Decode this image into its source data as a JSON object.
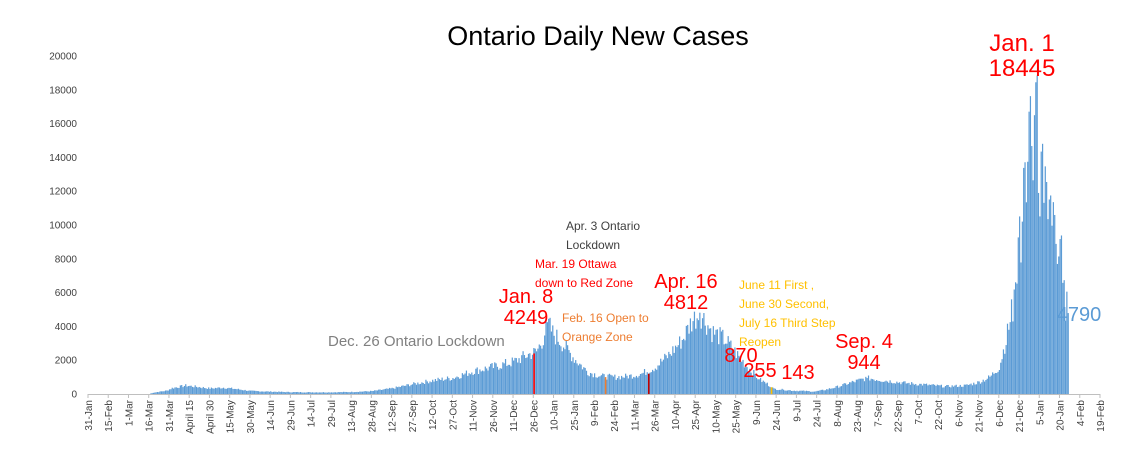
{
  "chart_data": {
    "type": "bar",
    "title": "Ontario Daily New Cases",
    "xlabel": "",
    "ylabel": "",
    "ylim": [
      0,
      20000
    ],
    "y_ticks": [
      "0",
      "2000",
      "4000",
      "6000",
      "8000",
      "10000",
      "12000",
      "14000",
      "16000",
      "18000",
      "20000"
    ],
    "x_tick_labels": [
      "31-Jan",
      "15-Feb",
      "1-Mar",
      "16-Mar",
      "31-Mar",
      "April 15",
      "April 30",
      "15-May",
      "30-May",
      "14-Jun",
      "29-Jun",
      "14-Jul",
      "29-Jul",
      "13-Aug",
      "28-Aug",
      "12-Sep",
      "27-Sep",
      "12-Oct",
      "27-Oct",
      "11-Nov",
      "26-Nov",
      "11-Dec",
      "26-Dec",
      "10-Jan",
      "25-Jan",
      "9-Feb",
      "24-Feb",
      "11-Mar",
      "26-Mar",
      "10-Apr",
      "25-Apr",
      "10-May",
      "25-May",
      "9-Jun",
      "24-Jun",
      "9-Jul",
      "24-Jul",
      "8-Aug",
      "23-Aug",
      "7-Sep",
      "22-Sep",
      "7-Oct",
      "22-Oct",
      "6-Nov",
      "21-Nov",
      "6-Dec",
      "21-Dec",
      "5-Jan",
      "20-Jan",
      "4-Feb",
      "19-Feb"
    ],
    "bar_color": "#5b9bd5",
    "grid": false,
    "legend": "none",
    "series_profile": [
      [
        0,
        0
      ],
      [
        45,
        0
      ],
      [
        48,
        80
      ],
      [
        58,
        200
      ],
      [
        62,
        350
      ],
      [
        72,
        500
      ],
      [
        80,
        430
      ],
      [
        90,
        330
      ],
      [
        100,
        380
      ],
      [
        110,
        290
      ],
      [
        120,
        180
      ],
      [
        135,
        140
      ],
      [
        150,
        110
      ],
      [
        165,
        100
      ],
      [
        180,
        100
      ],
      [
        195,
        120
      ],
      [
        210,
        170
      ],
      [
        225,
        330
      ],
      [
        240,
        580
      ],
      [
        255,
        800
      ],
      [
        270,
        950
      ],
      [
        285,
        1350
      ],
      [
        300,
        1600
      ],
      [
        315,
        1900
      ],
      [
        325,
        2300
      ],
      [
        332,
        2500
      ],
      [
        337,
        3300
      ],
      [
        340,
        4249
      ],
      [
        344,
        3600
      ],
      [
        350,
        3100
      ],
      [
        360,
        2100
      ],
      [
        370,
        1300
      ],
      [
        380,
        1050
      ],
      [
        390,
        1000
      ],
      [
        400,
        1050
      ],
      [
        410,
        1200
      ],
      [
        420,
        1600
      ],
      [
        430,
        2300
      ],
      [
        440,
        3200
      ],
      [
        447,
        4300
      ],
      [
        453,
        4812
      ],
      [
        462,
        3700
      ],
      [
        472,
        3200
      ],
      [
        482,
        2200
      ],
      [
        492,
        1300
      ],
      [
        497,
        870
      ],
      [
        503,
        600
      ],
      [
        508,
        300
      ],
      [
        515,
        255
      ],
      [
        522,
        200
      ],
      [
        530,
        180
      ],
      [
        538,
        143
      ],
      [
        546,
        250
      ],
      [
        556,
        450
      ],
      [
        566,
        700
      ],
      [
        577,
        944
      ],
      [
        590,
        800
      ],
      [
        605,
        650
      ],
      [
        620,
        550
      ],
      [
        635,
        450
      ],
      [
        650,
        500
      ],
      [
        660,
        700
      ],
      [
        668,
        1000
      ],
      [
        675,
        1600
      ],
      [
        680,
        3200
      ],
      [
        684,
        4800
      ],
      [
        690,
        9600
      ],
      [
        695,
        12500
      ],
      [
        699,
        15500
      ],
      [
        702,
        18445
      ],
      [
        705,
        13300
      ],
      [
        710,
        12000
      ],
      [
        715,
        10500
      ],
      [
        720,
        8200
      ],
      [
        724,
        6200
      ],
      [
        726,
        4790
      ]
    ],
    "data_labels": [
      {
        "lines": [
          "Jan. 8",
          "4249"
        ],
        "color": "#ff0000"
      },
      {
        "lines": [
          "Apr. 16",
          "4812"
        ],
        "color": "#ff0000"
      },
      {
        "lines": [
          "870"
        ],
        "color": "#ff0000"
      },
      {
        "lines": [
          "255"
        ],
        "color": "#ff0000"
      },
      {
        "lines": [
          "143"
        ],
        "color": "#ff0000"
      },
      {
        "lines": [
          "Sep. 4",
          "944"
        ],
        "color": "#ff0000"
      },
      {
        "lines": [
          "Jan. 1",
          "18445"
        ],
        "color": "#ff0000"
      },
      {
        "lines": [
          "4790"
        ],
        "color": "#5b9bd5"
      }
    ],
    "annotations": [
      {
        "lines": [
          "Dec. 26 Ontario Lockdown"
        ],
        "color": "#808080"
      },
      {
        "lines": [
          "Apr. 3 Ontario",
          "Lockdown"
        ],
        "color": "#404040"
      },
      {
        "lines": [
          "Mar. 19 Ottawa",
          "down to Red Zone"
        ],
        "color": "#ff0000"
      },
      {
        "lines": [
          "Feb. 16 Open to",
          "Orange Zone"
        ],
        "color": "#ed7d31"
      },
      {
        "lines": [
          "June 11 First ,",
          "June 30 Second,",
          "July 16 Third Step",
          "Reopen"
        ],
        "color": "#ffc000"
      }
    ],
    "event_markers": [
      {
        "color": "#ff0000"
      },
      {
        "color": "#ed7d31"
      },
      {
        "color": "#c00000"
      },
      {
        "color": "#ffc000"
      }
    ]
  }
}
